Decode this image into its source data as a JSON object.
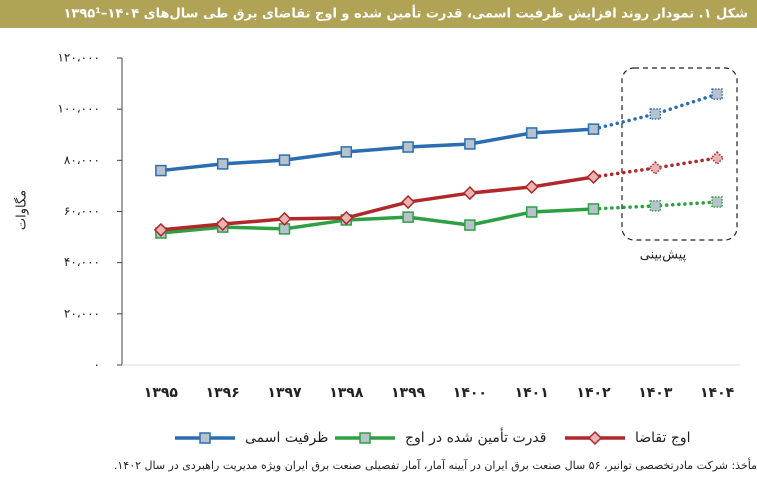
{
  "chart_data": {
    "type": "line",
    "title": "شکل ۱. نمودار روند افزایش ظرفیت اسمی، قدرت تأمین شده و اوج تقاضای برق طی سال‌های ۱۴۰۴–۱۳۹۵¹",
    "y_label": "مگاوات",
    "annotation": "پیش‌بینی",
    "source": "مأخذ: شرکت مادرتخصصی توانیر، ۵۶ سال صنعت برق ایران در آیینه آمار، آمار تفصیلی صنعت برق ایران ویژه مدیریت راهبردی در سال ۱۴۰۲.",
    "categories": [
      "۱۳۹۵",
      "۱۳۹۶",
      "۱۳۹۷",
      "۱۳۹۸",
      "۱۳۹۹",
      "۱۴۰۰",
      "۱۴۰۱",
      "۱۴۰۲",
      "۱۴۰۳",
      "۱۴۰۴"
    ],
    "dotted_from": 7,
    "ylim": [
      0,
      120000
    ],
    "yticks": [
      {
        "value": 0,
        "label": "۰"
      },
      {
        "value": 20000,
        "label": "۲۰،۰۰۰"
      },
      {
        "value": 40000,
        "label": "۴۰،۰۰۰"
      },
      {
        "value": 60000,
        "label": "۶۰،۰۰۰"
      },
      {
        "value": 80000,
        "label": "۸۰،۰۰۰"
      },
      {
        "value": 100000,
        "label": "۱۰۰،۰۰۰"
      },
      {
        "value": 120000,
        "label": "۱۲۰،۰۰۰"
      }
    ],
    "series": [
      {
        "name": "ظرفیت اسمی",
        "color": "#2a6db0",
        "marker": "square",
        "values": [
          76000,
          78600,
          80100,
          83300,
          85200,
          86400,
          90700,
          92200,
          98100,
          105900
        ]
      },
      {
        "name": "قدرت تأمین شده در اوج",
        "color": "#2ea043",
        "marker": "square",
        "values": [
          51600,
          53900,
          53200,
          56700,
          57800,
          54700,
          59800,
          61000,
          62200,
          63700
        ]
      },
      {
        "name": "اوج تقاضا",
        "color": "#b0282a",
        "marker": "diamond",
        "values": [
          52800,
          55100,
          57100,
          57500,
          63700,
          67200,
          69600,
          73500,
          77000,
          80900
        ]
      }
    ]
  }
}
